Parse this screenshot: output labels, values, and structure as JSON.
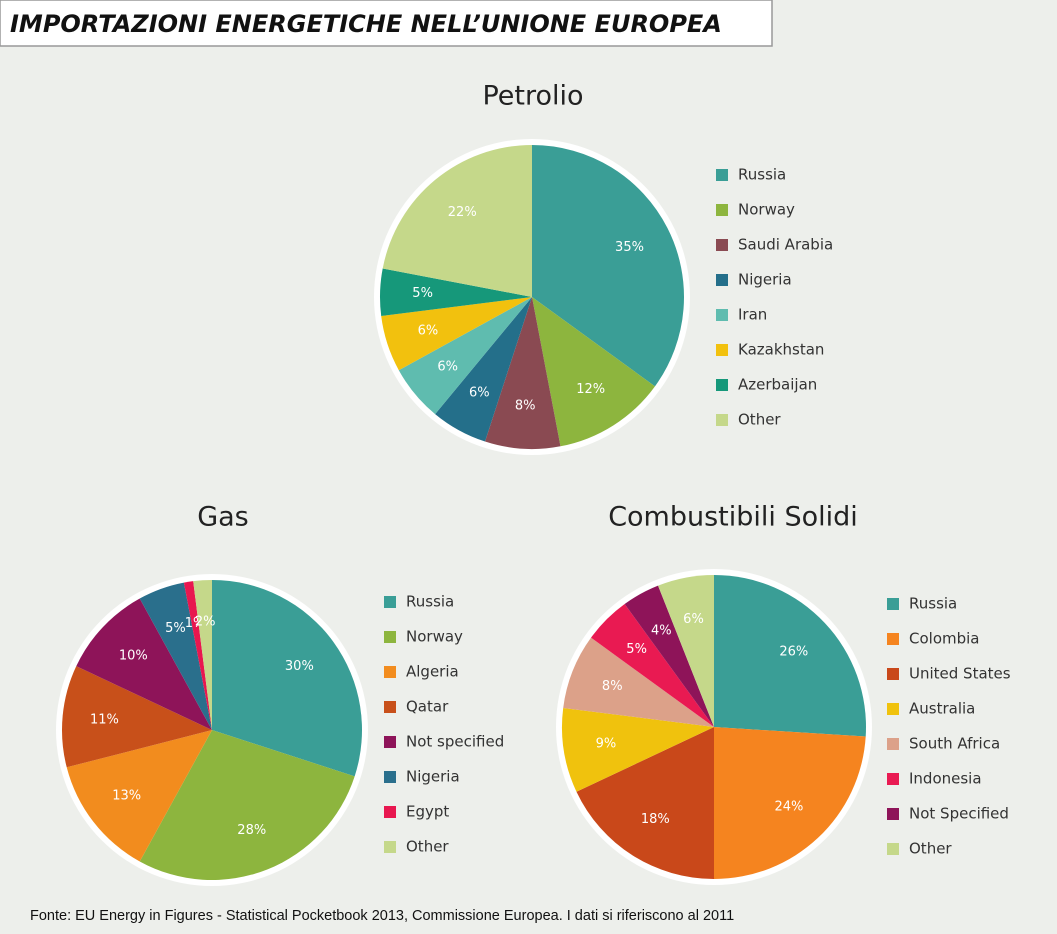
{
  "title": "IMPORTAZIONI ENERGETICHE NELL’UNIONE EUROPEA",
  "source": "Fonte: EU Energy in Figures - Statistical Pocketbook 2013, Commissione Europea. I dati si riferiscono al 2011",
  "chart_data": [
    {
      "type": "pie",
      "title": "Petrolio",
      "categories": [
        "Russia",
        "Norway",
        "Saudi Arabia",
        "Nigeria",
        "Iran",
        "Kazakhstan",
        "Azerbaijan",
        "Other"
      ],
      "values": [
        35,
        12,
        8,
        6,
        6,
        6,
        5,
        22
      ],
      "value_labels": [
        "35%",
        "12%",
        "8%",
        "6%",
        "6%",
        "6%",
        "5%",
        "22%"
      ],
      "colors": [
        "#3a9e96",
        "#8db53e",
        "#8a4a52",
        "#246f8a",
        "#5fbcaf",
        "#f2c10e",
        "#16987a",
        "#c5d88a"
      ]
    },
    {
      "type": "pie",
      "title": "Gas",
      "categories": [
        "Russia",
        "Norway",
        "Algeria",
        "Qatar",
        "Not specified",
        "Nigeria",
        "Egypt",
        "Other"
      ],
      "values": [
        30,
        28,
        13,
        11,
        10,
        5,
        1,
        2
      ],
      "value_labels": [
        "30%",
        "28%",
        "13%",
        "11%",
        "10%",
        "5%",
        "1%",
        "2%"
      ],
      "colors": [
        "#3a9e96",
        "#8db53e",
        "#f28c1e",
        "#c8501a",
        "#8e1459",
        "#2a6f8c",
        "#e8174f",
        "#c5d88a"
      ]
    },
    {
      "type": "pie",
      "title": "Combustibili Solidi",
      "categories": [
        "Russia",
        "Colombia",
        "United States",
        "Australia",
        "South Africa",
        "Indonesia",
        "Not Specified",
        "Other"
      ],
      "values": [
        26,
        24,
        18,
        9,
        8,
        5,
        4,
        6
      ],
      "value_labels": [
        "26%",
        "24%",
        "18%",
        "9%",
        "8%",
        "5%",
        "4%",
        "6%"
      ],
      "colors": [
        "#3a9e96",
        "#f5841f",
        "#c9481a",
        "#f0c20d",
        "#dca189",
        "#e91a52",
        "#8e1459",
        "#c5d88a"
      ]
    }
  ]
}
